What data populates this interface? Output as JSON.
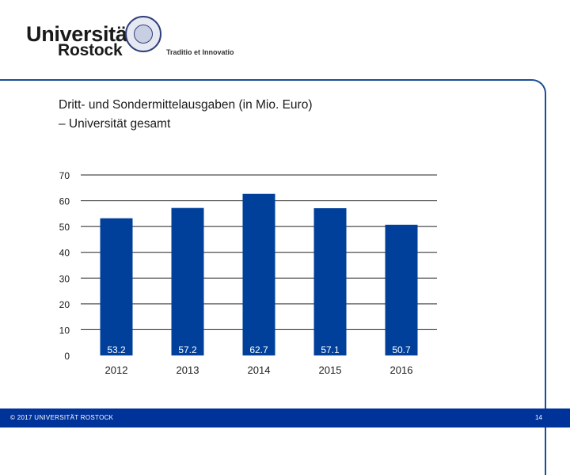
{
  "header": {
    "logo_line1": "Universität",
    "logo_line2": "Rostock",
    "logo_motto": "Traditio et Innovatio"
  },
  "colors": {
    "accent": "#1a4e95",
    "bar": "#00409a",
    "footer": "#00339a"
  },
  "chart_data": {
    "type": "bar",
    "title_line1": "Dritt- und Sondermittelausgaben (in Mio. Euro)",
    "title_line2": "– Universität gesamt",
    "categories": [
      "2012",
      "2013",
      "2014",
      "2015",
      "2016"
    ],
    "values": [
      53.2,
      57.2,
      62.7,
      57.1,
      50.7
    ],
    "value_labels": [
      "53.2",
      "57.2",
      "62.7",
      "57.1",
      "50.7"
    ],
    "y_ticks": [
      0,
      10,
      20,
      30,
      40,
      50,
      60,
      70
    ],
    "ylim": [
      0,
      70
    ],
    "grid": true,
    "legend": "none",
    "xlabel": "",
    "ylabel": ""
  },
  "footer": {
    "copyright": "© 2017 UNIVERSITÄT ROSTOCK",
    "page_number": "14"
  }
}
